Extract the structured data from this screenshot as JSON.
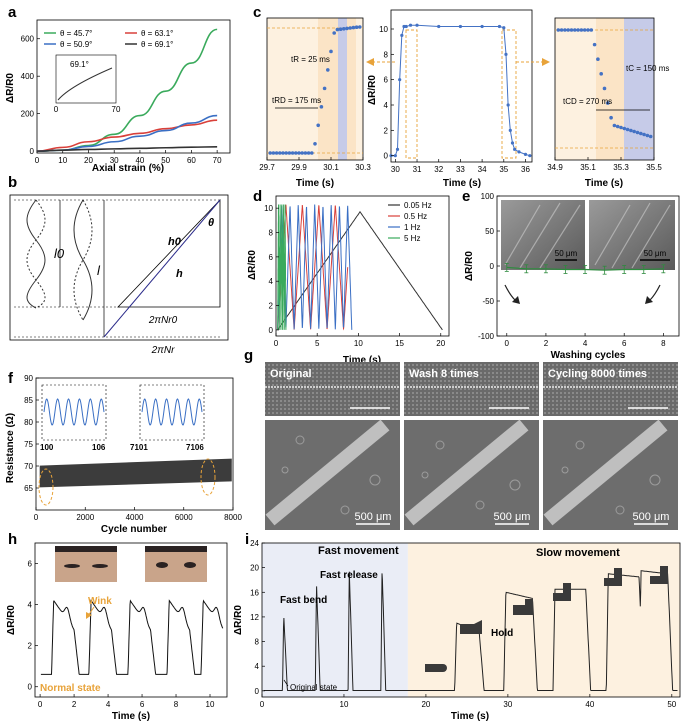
{
  "chart_data": [
    {
      "panel": "a",
      "type": "line",
      "xlabel": "Axial strain (%)",
      "ylabel": "ΔR/R0",
      "xlim": [
        0,
        75
      ],
      "ylim": [
        -10,
        700
      ],
      "xticks": [
        "0",
        "10",
        "20",
        "30",
        "40",
        "50",
        "60",
        "70"
      ],
      "yticks": [
        "0",
        "200",
        "400",
        "600"
      ],
      "series": [
        {
          "name": "θ = 45.7°",
          "color": "#3aaa5c",
          "x": [
            0,
            10,
            20,
            30,
            40,
            50,
            60,
            70
          ],
          "y": [
            0,
            5,
            30,
            90,
            190,
            320,
            470,
            650
          ]
        },
        {
          "name": "θ = 63.1°",
          "color": "#d9403a",
          "x": [
            0,
            10,
            20,
            30,
            40,
            50,
            60,
            70
          ],
          "y": [
            0,
            20,
            50,
            75,
            95,
            120,
            140,
            165
          ]
        },
        {
          "name": "θ = 50.9°",
          "color": "#3a6fc4",
          "x": [
            0,
            10,
            20,
            30,
            40,
            50,
            60,
            70
          ],
          "y": [
            0,
            5,
            25,
            50,
            80,
            110,
            150,
            190
          ]
        },
        {
          "name": "θ = 69.1°",
          "color": "#333333",
          "x": [
            0,
            10,
            20,
            30,
            40,
            50,
            60,
            70
          ],
          "y": [
            0,
            5,
            9,
            12,
            15,
            18,
            21,
            23
          ]
        }
      ],
      "inset": {
        "label": "69.1°",
        "xticks": [
          "0",
          "70"
        ],
        "ticks": [
          "0",
          "70"
        ]
      }
    },
    {
      "panel": "b",
      "type": "diagram",
      "labels": [
        "l0",
        "l",
        "h0",
        "h",
        "θ",
        "2πNr0",
        "2πNr"
      ]
    },
    {
      "panel": "c",
      "type": "scatter",
      "ylabel": "ΔR/R0",
      "xlabel": "Time (s)",
      "subplots": [
        {
          "name": "left",
          "xlim": [
            29.7,
            30.3
          ],
          "xticks": [
            "29.7",
            "29.9",
            "30.1",
            "30.3"
          ],
          "annotations": [
            "tR = 25 ms",
            "tRD = 175 ms"
          ]
        },
        {
          "name": "middle",
          "xlim": [
            29.8,
            36.3
          ],
          "ylim": [
            -0.5,
            11.5
          ],
          "xticks": [
            "30",
            "31",
            "32",
            "33",
            "34",
            "35",
            "36"
          ],
          "yticks": [
            "0",
            "2",
            "4",
            "6",
            "8",
            "10"
          ],
          "x": [
            29.8,
            30.0,
            30.1,
            30.2,
            30.3,
            30.4,
            30.5,
            30.7,
            31.0,
            32.0,
            33.0,
            34.0,
            34.8,
            35.0,
            35.1,
            35.2,
            35.3,
            35.4,
            35.5,
            35.7,
            36.0,
            36.2
          ],
          "y": [
            0,
            0,
            0.5,
            6,
            9.5,
            10.2,
            10.2,
            10.3,
            10.3,
            10.2,
            10.2,
            10.2,
            10.2,
            10.1,
            8,
            4,
            2,
            1,
            0.5,
            0.3,
            0.1,
            0
          ]
        },
        {
          "name": "right",
          "xlim": [
            34.9,
            35.5
          ],
          "xticks": [
            "34.9",
            "35.1",
            "35.3",
            "35.5"
          ],
          "annotations": [
            "tC = 150 ms",
            "tCD = 270 ms"
          ]
        }
      ]
    },
    {
      "panel": "d",
      "type": "line",
      "xlabel": "Time (s)",
      "ylabel": "ΔR/R0",
      "xlim": [
        0,
        21
      ],
      "ylim": [
        -0.5,
        11
      ],
      "xticks": [
        "0",
        "5",
        "10",
        "15",
        "20"
      ],
      "yticks": [
        "0",
        "2",
        "4",
        "6",
        "8",
        "10"
      ],
      "series": [
        {
          "name": "0.05 Hz",
          "color": "#333333"
        },
        {
          "name": "0.5 Hz",
          "color": "#d9403a"
        },
        {
          "name": "1 Hz",
          "color": "#3a6fc4"
        },
        {
          "name": "5 Hz",
          "color": "#3aaa5c"
        }
      ]
    },
    {
      "panel": "e",
      "type": "line",
      "xlabel": "Washing cycles",
      "ylabel": "ΔR/R0",
      "xlim": [
        -0.5,
        8.8
      ],
      "ylim": [
        -100,
        100
      ],
      "xticks": [
        "0",
        "2",
        "4",
        "6",
        "8"
      ],
      "yticks": [
        "-100",
        "-50",
        "0",
        "50",
        "100"
      ],
      "x": [
        0,
        1,
        2,
        3,
        4,
        5,
        6,
        7,
        8
      ],
      "y": [
        -2,
        -4,
        -4,
        -5,
        -5,
        -6,
        -5,
        -5,
        -4
      ],
      "scalebars": [
        "50 μm",
        "50 μm"
      ]
    },
    {
      "panel": "f",
      "type": "area",
      "xlabel": "Cycle number",
      "ylabel": "Resistance (Ω)",
      "xlim": [
        0,
        8000
      ],
      "ylim": [
        60,
        90
      ],
      "xticks": [
        "0",
        "2000",
        "4000",
        "6000",
        "8000"
      ],
      "yticks": [
        "65",
        "70",
        "75",
        "80",
        "85",
        "90"
      ],
      "band": {
        "low": 66.5,
        "high": 71
      },
      "insets": [
        {
          "start": "100",
          "end": "106"
        },
        {
          "start": "7101",
          "end": "7106"
        }
      ]
    },
    {
      "panel": "g",
      "type": "image-grid",
      "labels": [
        "Original",
        "Wash 8 times",
        "Cycling 8000 times"
      ],
      "scalebars": [
        "500 μm",
        "500 μm",
        "500 μm"
      ]
    },
    {
      "panel": "h",
      "type": "line",
      "xlabel": "Time (s)",
      "ylabel": "ΔR/R0",
      "xlim": [
        -0.3,
        11
      ],
      "ylim": [
        -0.5,
        7
      ],
      "xticks": [
        "0",
        "2",
        "4",
        "6",
        "8",
        "10"
      ],
      "yticks": [
        "0",
        "2",
        "4",
        "6"
      ],
      "annotations": [
        "Wink",
        "Normal state"
      ]
    },
    {
      "panel": "i",
      "type": "line",
      "xlabel": "Time (s)",
      "ylabel": "ΔR/R0",
      "xlim": [
        0,
        51
      ],
      "ylim": [
        -1,
        24
      ],
      "xticks": [
        "0",
        "10",
        "20",
        "30",
        "40",
        "50"
      ],
      "yticks": [
        "0",
        "4",
        "8",
        "12",
        "16",
        "20",
        "24"
      ],
      "annotations": [
        "Fast movement",
        "Slow movement",
        "Fast release",
        "Fast bend",
        "Hold",
        "Original state"
      ]
    }
  ]
}
